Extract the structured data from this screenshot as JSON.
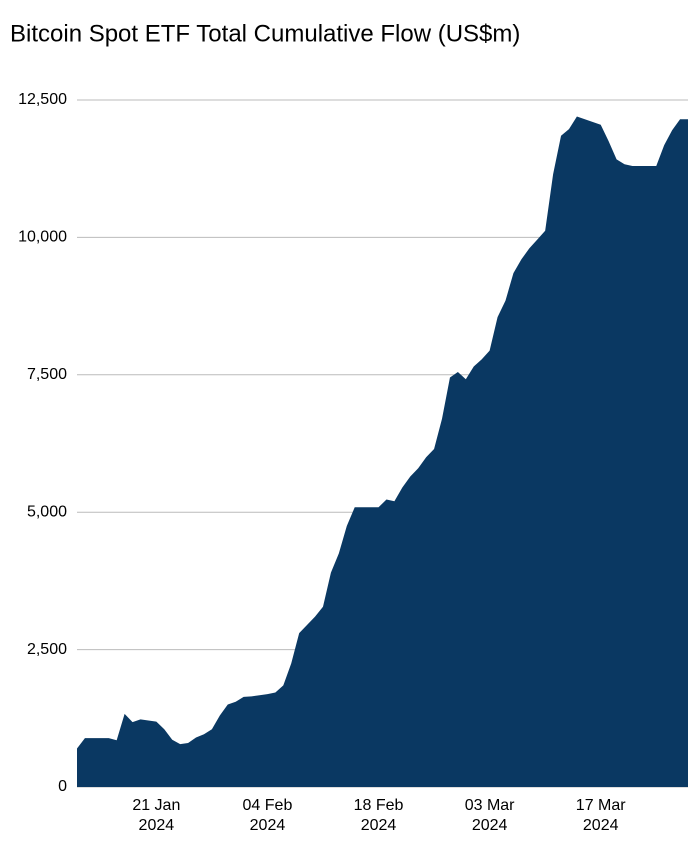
{
  "chart_data": {
    "type": "area",
    "title": "Bitcoin Spot ETF Total Cumulative Flow (US$m)",
    "x": [
      "2024-01-11",
      "2024-01-12",
      "2024-01-13",
      "2024-01-14",
      "2024-01-15",
      "2024-01-16",
      "2024-01-17",
      "2024-01-18",
      "2024-01-19",
      "2024-01-20",
      "2024-01-21",
      "2024-01-22",
      "2024-01-23",
      "2024-01-24",
      "2024-01-25",
      "2024-01-26",
      "2024-01-27",
      "2024-01-28",
      "2024-01-29",
      "2024-01-30",
      "2024-01-31",
      "2024-02-01",
      "2024-02-02",
      "2024-02-03",
      "2024-02-04",
      "2024-02-05",
      "2024-02-06",
      "2024-02-07",
      "2024-02-08",
      "2024-02-09",
      "2024-02-10",
      "2024-02-11",
      "2024-02-12",
      "2024-02-13",
      "2024-02-14",
      "2024-02-15",
      "2024-02-16",
      "2024-02-17",
      "2024-02-18",
      "2024-02-19",
      "2024-02-20",
      "2024-02-21",
      "2024-02-22",
      "2024-02-23",
      "2024-02-24",
      "2024-02-25",
      "2024-02-26",
      "2024-02-27",
      "2024-02-28",
      "2024-02-29",
      "2024-03-01",
      "2024-03-02",
      "2024-03-03",
      "2024-03-04",
      "2024-03-05",
      "2024-03-06",
      "2024-03-07",
      "2024-03-08",
      "2024-03-09",
      "2024-03-10",
      "2024-03-11",
      "2024-03-12",
      "2024-03-13",
      "2024-03-14",
      "2024-03-15",
      "2024-03-16",
      "2024-03-17",
      "2024-03-18",
      "2024-03-19",
      "2024-03-20",
      "2024-03-21",
      "2024-03-22",
      "2024-03-23",
      "2024-03-24",
      "2024-03-25",
      "2024-03-26",
      "2024-03-27",
      "2024-03-28"
    ],
    "values": [
      700,
      890,
      890,
      890,
      890,
      850,
      1330,
      1180,
      1230,
      1210,
      1190,
      1050,
      860,
      780,
      800,
      900,
      960,
      1050,
      1300,
      1500,
      1550,
      1640,
      1650,
      1670,
      1690,
      1720,
      1850,
      2250,
      2800,
      2950,
      3100,
      3280,
      3900,
      4250,
      4750,
      5090,
      5090,
      5090,
      5090,
      5230,
      5200,
      5450,
      5650,
      5800,
      6000,
      6150,
      6700,
      7450,
      7550,
      7420,
      7650,
      7780,
      7940,
      8550,
      8850,
      9350,
      9600,
      9800,
      9960,
      10120,
      11150,
      11850,
      11970,
      12200,
      12150,
      12100,
      12050,
      11750,
      11420,
      11330,
      11300,
      11300,
      11300,
      11300,
      11680,
      11950,
      12150,
      12150
    ],
    "color": "#0a3862",
    "xlim": [
      "2024-01-11",
      "2024-03-28"
    ],
    "xticks": [
      {
        "value": "2024-01-21",
        "label": "21 Jan\n2024"
      },
      {
        "value": "2024-02-04",
        "label": "04 Feb\n2024"
      },
      {
        "value": "2024-02-18",
        "label": "18 Feb\n2024"
      },
      {
        "value": "2024-03-03",
        "label": "03 Mar\n2024"
      },
      {
        "value": "2024-03-17",
        "label": "17 Mar\n2024"
      }
    ],
    "ylim": [
      0,
      12500
    ],
    "yticks": [
      0,
      {
        "value": 2500,
        "label": "2,500"
      },
      {
        "value": 5000,
        "label": "5,000"
      },
      {
        "value": 7500,
        "label": "7,500"
      },
      {
        "value": 10000,
        "label": "10,000"
      },
      {
        "value": 12500,
        "label": "12,500"
      }
    ],
    "grid": true
  }
}
